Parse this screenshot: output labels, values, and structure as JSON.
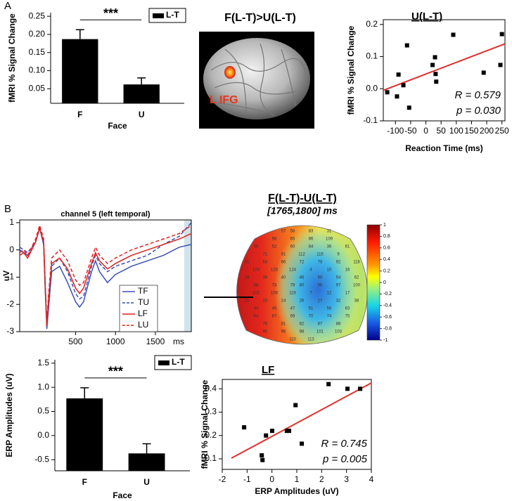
{
  "panel_labels": [
    "A",
    "B"
  ],
  "chart_data": [
    {
      "type": "bar",
      "categories": [
        "F",
        "U"
      ],
      "xlabel": "Face",
      "ylabel": "fMRI % Signal Change",
      "annotation": "***",
      "series": [
        {
          "name": "L-T",
          "color": "#000000",
          "values": [
            0.187,
            0.062
          ],
          "errors": [
            0.026,
            0.018
          ]
        }
      ],
      "ylim": [
        0.01,
        0.26
      ],
      "yticks": [
        0.05,
        {
          "value": 0.1,
          "label": "0.10"
        },
        0.15,
        {
          "value": 0.2,
          "label": "0.20"
        },
        0.25
      ]
    },
    {
      "type": "scatter",
      "title": "U(L-T)",
      "xlabel": "Reaction Time (ms)",
      "ylabel": "fMRI % Signal Change",
      "color": "#000000",
      "x": [
        -127,
        -95,
        -90,
        -74,
        -62,
        -55,
        22,
        30,
        32,
        34,
        90,
        190,
        245,
        250
      ],
      "y": [
        -0.011,
        -0.024,
        0.044,
        0.011,
        0.135,
        -0.059,
        0.074,
        0.098,
        0.046,
        0.022,
        0.168,
        0.05,
        0.074,
        0.17
      ],
      "fit": {
        "x": [
          -140,
          260
        ],
        "y": [
          -0.005,
          0.14
        ]
      },
      "fit_color": "#e0302a",
      "annotations": [
        "R = 0.579",
        "p = 0.030"
      ],
      "xlim": [
        -140,
        260
      ],
      "ylim": [
        -0.1,
        0.215
      ],
      "xticks": [
        -100,
        -50,
        0,
        50,
        100,
        150,
        200,
        250
      ],
      "yticks": [
        -0.1,
        {
          "value": 0,
          "label": "0.0"
        },
        0.1,
        0.2
      ]
    },
    {
      "type": "line",
      "title": "channel 5 (left temporal)",
      "xlabel": "ms",
      "ylabel": "uV",
      "x": [
        -200,
        -150,
        -100,
        -50,
        0,
        50,
        100,
        120,
        140,
        160,
        200,
        300,
        400,
        500,
        550,
        600,
        700,
        750,
        800,
        900,
        1000,
        1200,
        1400,
        1600,
        1800,
        1950
      ],
      "series": [
        {
          "name": "TF",
          "color": "#3a4fb5",
          "dash": false,
          "values": [
            0,
            -0.1,
            -0.2,
            0,
            0.3,
            0.8,
            0.2,
            -1.5,
            -2.9,
            -2.2,
            -0.8,
            -0.6,
            -1.2,
            -1.9,
            -2.1,
            -1.9,
            -0.8,
            -0.4,
            -0.8,
            -1.2,
            -0.9,
            -0.6,
            -0.4,
            -0.2,
            0.1,
            0.2
          ]
        },
        {
          "name": "TU",
          "color": "#3a4fb5",
          "dash": true,
          "values": [
            0.1,
            0,
            -0.1,
            0.1,
            0.3,
            0.8,
            0.2,
            -1.4,
            -2.8,
            -2.0,
            -0.6,
            -0.3,
            -0.8,
            -1.6,
            -1.8,
            -1.7,
            -0.6,
            -0.2,
            -0.5,
            -0.8,
            -0.6,
            -0.4,
            -0.2,
            0.2,
            0.5,
            1.0
          ]
        },
        {
          "name": "LF",
          "color": "#e02020",
          "dash": false,
          "values": [
            -0.2,
            -0.1,
            -0.3,
            0,
            0.3,
            0.8,
            0.3,
            -1.3,
            -2.8,
            -1.9,
            -0.5,
            -0.3,
            -0.7,
            -1.4,
            -1.6,
            -1.4,
            -0.5,
            -0.1,
            -0.4,
            -0.7,
            -0.5,
            -0.2,
            0,
            0.2,
            0.4,
            0.6
          ]
        },
        {
          "name": "LU",
          "color": "#e02020",
          "dash": true,
          "values": [
            -0.1,
            0,
            -0.2,
            0.1,
            0.4,
            0.9,
            0.4,
            -1.2,
            -2.7,
            -1.7,
            -0.3,
            0,
            -0.4,
            -1.1,
            -1.3,
            -1.2,
            -0.3,
            0.1,
            -0.2,
            -0.5,
            -0.3,
            0,
            0.2,
            0.4,
            0.6,
            0.9
          ]
        }
      ],
      "xlim": [
        -200,
        1950
      ],
      "ylim": [
        -3,
        1.1
      ],
      "xticks": [
        500,
        1000,
        1500
      ],
      "yticks": [
        -3,
        -2,
        -1,
        0,
        1
      ]
    },
    {
      "type": "bar",
      "categories": [
        "F",
        "U"
      ],
      "xlabel": "Face",
      "ylabel": "ERP Amplitudes (uV)",
      "annotation": "***",
      "series": [
        {
          "name": "L-T",
          "color": "#000000",
          "values": [
            0.77,
            -0.37
          ],
          "errors": [
            0.22,
            0.2
          ]
        }
      ],
      "ylim": [
        -0.73,
        1.57
      ],
      "yticks": [
        -0.5,
        {
          "value": 0,
          "label": "0.0"
        },
        0.5,
        {
          "value": 1,
          "label": "1.0"
        },
        1.5
      ]
    },
    {
      "type": "scatter",
      "title": "LF",
      "xlabel": "ERP Amplitudes (uV)",
      "ylabel": "fMRI % Signal Change",
      "color": "#000000",
      "x": [
        -1.12,
        -0.24,
        0.01,
        -0.41,
        -0.38,
        0.6,
        0.69,
        0.95,
        1.2,
        2.28,
        3.04,
        3.55
      ],
      "y": [
        0.235,
        0.2,
        0.22,
        0.115,
        0.095,
        0.22,
        0.22,
        0.33,
        0.165,
        0.42,
        0.4,
        0.4
      ],
      "fit": {
        "x": [
          -1.63,
          4
        ],
        "y": [
          0.103,
          0.425
        ]
      },
      "fit_color": "#e0302a",
      "annotations": [
        "R = 0.745",
        "p = 0.005"
      ],
      "xlim": [
        -2,
        4
      ],
      "ylim": [
        0.055,
        0.44
      ],
      "xticks": [
        -2,
        -1,
        0,
        1,
        2,
        3,
        4
      ],
      "yticks": [
        0.1,
        0.2,
        0.3,
        0.4
      ]
    }
  ],
  "brain": {
    "title": "F(L-T)>U(L-T)",
    "label": "L IFG"
  },
  "topomap": {
    "title": "F(L-T)-U(L-T)",
    "subtitle": "[1765,1800] ms",
    "electrodes": [
      "57",
      "58",
      "83",
      "31",
      "59",
      "65",
      "86",
      "109",
      "30",
      "52",
      "60",
      "84",
      "36",
      "61",
      "71",
      "91",
      "112",
      "115",
      "9",
      "41",
      "53",
      "66",
      "72",
      "78",
      "92",
      "118",
      "123",
      "126",
      "124",
      "4",
      "10",
      "16",
      "18",
      "39",
      "40",
      "46",
      "50",
      "54",
      "62",
      "68",
      "73",
      "79",
      "80",
      "95",
      "97",
      "100",
      "102",
      "108",
      "119",
      "7",
      "12",
      "17",
      "21",
      "23",
      "24",
      "26",
      "27",
      "32",
      "38",
      "44",
      "45",
      "47",
      "51",
      "56",
      "63",
      "64",
      "67",
      "69",
      "70",
      "74",
      "75",
      "76",
      "81",
      "82",
      "87",
      "88",
      "90",
      "96",
      "98",
      "101",
      "103",
      "110",
      "113"
    ],
    "colorbar": {
      "lim": [
        -1,
        1
      ],
      "ticks": [
        1,
        0.8,
        0.6,
        0.4,
        0.2,
        0,
        -0.2,
        -0.4,
        -0.6,
        -0.8,
        -1
      ]
    }
  }
}
